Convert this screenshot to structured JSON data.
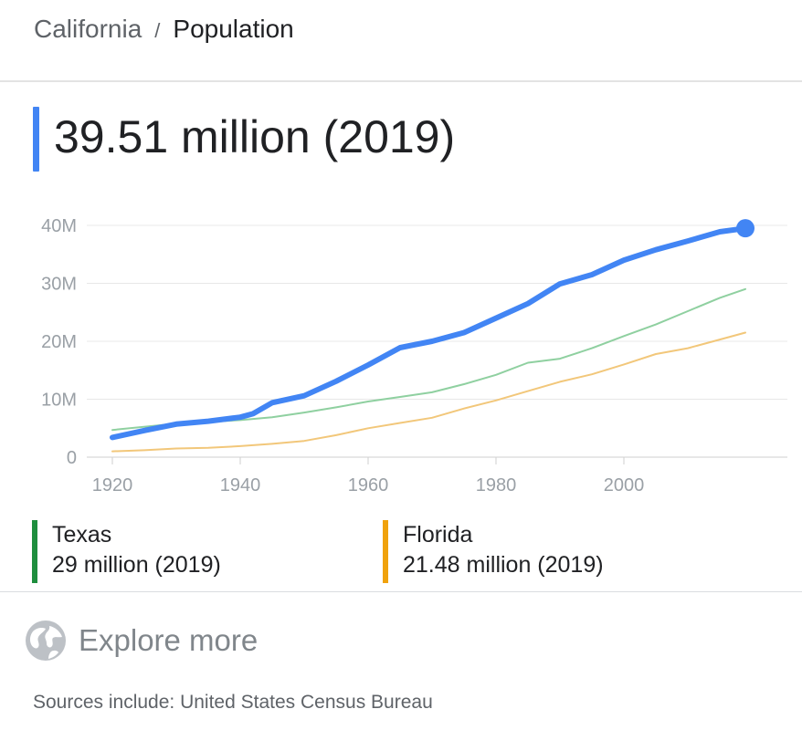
{
  "breadcrumb": {
    "parent": "California",
    "separator": "/",
    "current": "Population"
  },
  "headline": "39.51 million (2019)",
  "legend": [
    {
      "name": "Texas",
      "value": "29 million (2019)",
      "color": "#1e8e3e"
    },
    {
      "name": "Florida",
      "value": "21.48 million (2019)",
      "color": "#f0a20c"
    }
  ],
  "explore_label": "Explore more",
  "explore_icon": "globe-icon",
  "sources": "Sources include: United States Census Bureau",
  "chart_data": {
    "type": "line",
    "title": "",
    "xlabel": "",
    "ylabel": "",
    "xlim": [
      1917,
      2022
    ],
    "ylim": [
      0,
      40
    ],
    "x_ticks": [
      1920,
      1940,
      1960,
      1980,
      2000
    ],
    "x_tick_labels": [
      "1920",
      "1940",
      "1960",
      "1980",
      "2000"
    ],
    "y_ticks": [
      0,
      10,
      20,
      30,
      40
    ],
    "y_tick_labels": [
      "0",
      "10M",
      "20M",
      "30M",
      "40M"
    ],
    "grid": "horizontal",
    "series": [
      {
        "color": "#4285f4",
        "width": 6,
        "endpoint_marker": true,
        "x": [
          1920,
          1925,
          1930,
          1935,
          1940,
          1942,
          1945,
          1950,
          1955,
          1960,
          1965,
          1970,
          1975,
          1980,
          1985,
          1990,
          1995,
          2000,
          2005,
          2010,
          2015,
          2019
        ],
        "y": [
          3.4,
          4.6,
          5.7,
          6.2,
          6.9,
          7.5,
          9.4,
          10.6,
          13.1,
          15.9,
          18.9,
          20.0,
          21.5,
          24.0,
          26.5,
          29.9,
          31.5,
          34.0,
          35.8,
          37.3,
          38.9,
          39.5
        ]
      },
      {
        "name": "Texas",
        "color": "#8fd0a0",
        "width": 2,
        "x": [
          1920,
          1930,
          1940,
          1945,
          1950,
          1955,
          1960,
          1965,
          1970,
          1975,
          1980,
          1985,
          1990,
          1995,
          2000,
          2005,
          2010,
          2015,
          2019
        ],
        "y": [
          4.7,
          5.8,
          6.4,
          6.9,
          7.7,
          8.6,
          9.6,
          10.4,
          11.2,
          12.6,
          14.2,
          16.3,
          17.0,
          18.8,
          20.9,
          22.9,
          25.2,
          27.5,
          29.0
        ]
      },
      {
        "name": "Florida",
        "color": "#f2c77a",
        "width": 2,
        "x": [
          1920,
          1925,
          1930,
          1935,
          1940,
          1945,
          1950,
          1955,
          1960,
          1965,
          1970,
          1975,
          1980,
          1985,
          1990,
          1995,
          2000,
          2005,
          2010,
          2015,
          2019
        ],
        "y": [
          1.0,
          1.2,
          1.5,
          1.6,
          1.9,
          2.3,
          2.8,
          3.8,
          5.0,
          5.9,
          6.8,
          8.4,
          9.8,
          11.4,
          13.0,
          14.3,
          16.0,
          17.8,
          18.8,
          20.3,
          21.5
        ]
      }
    ]
  }
}
